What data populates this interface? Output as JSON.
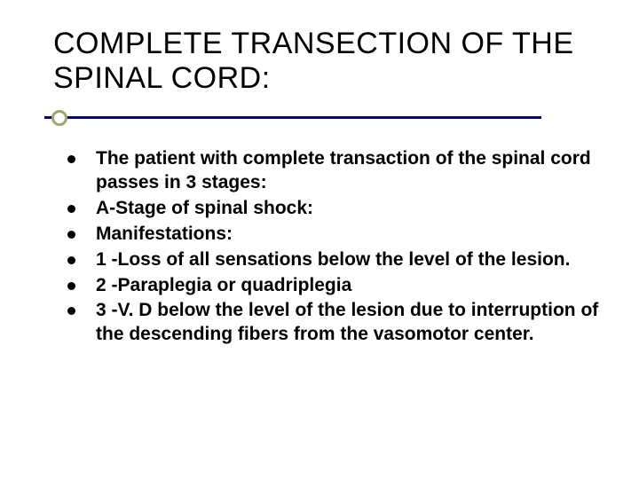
{
  "slide": {
    "title": "COMPLETE TRANSECTION OF THE SPINAL CORD:",
    "title_color": "#000000",
    "title_fontsize": 34,
    "accent_line_color": "#000080",
    "accent_dot_border_color": "#9aa86a",
    "background_color": "#ffffff",
    "bullet_color": "#000000",
    "body_fontsize": 21,
    "body_fontweight": 700,
    "bullets": [
      "The patient with complete transaction of the spinal cord passes in 3 stages:",
      "A-Stage of spinal shock:",
      "Manifestations:",
      "1 -Loss of all sensations below the level of the lesion.",
      "2 -Paraplegia or quadriplegia",
      "3 -V. D below the level of the lesion due to interruption of the descending fibers from the vasomotor center."
    ]
  }
}
